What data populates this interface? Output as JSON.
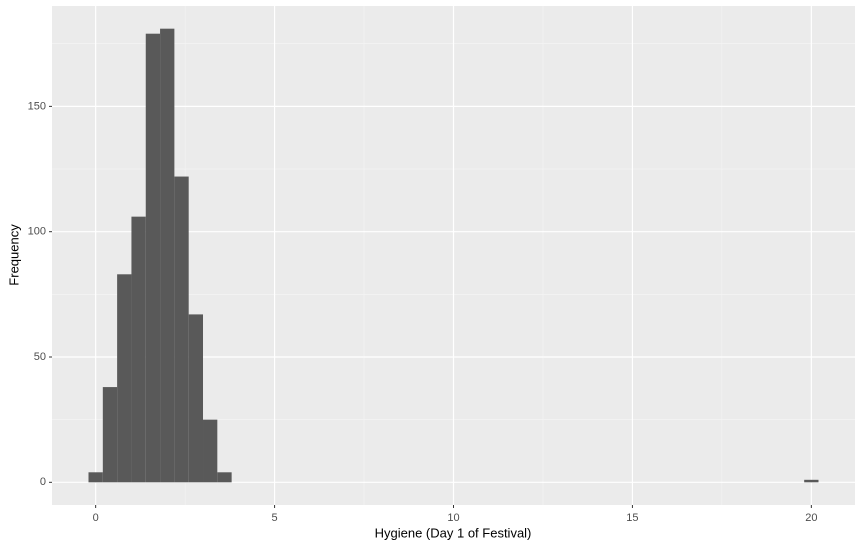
{
  "chart_data": {
    "type": "histogram",
    "x_label": "Hygiene (Day 1 of Festival)",
    "y_label": "Frequency",
    "bins": [
      -0.2,
      0.2,
      0.6,
      1.0,
      1.4,
      1.8,
      2.2,
      2.6,
      3.0,
      3.4,
      3.8,
      4.2,
      4.6,
      5.0,
      5.4,
      5.8,
      6.2,
      6.6,
      7.0,
      7.4,
      7.8,
      8.2,
      8.6,
      9.0,
      9.4,
      9.8,
      10.2,
      10.6,
      11.0,
      11.4,
      11.8,
      12.2,
      12.6,
      13.0,
      13.4,
      13.8,
      14.2,
      14.6,
      15.0,
      15.4,
      15.8,
      16.2,
      16.6,
      17.0,
      17.4,
      17.8,
      18.2,
      18.6,
      19.0,
      19.4,
      19.8,
      20.2
    ],
    "values": [
      4,
      38,
      83,
      106,
      179,
      181,
      122,
      67,
      25,
      4,
      0,
      0,
      0,
      0,
      0,
      0,
      0,
      0,
      0,
      0,
      0,
      0,
      0,
      0,
      0,
      0,
      0,
      0,
      0,
      0,
      0,
      0,
      0,
      0,
      0,
      0,
      0,
      0,
      0,
      0,
      0,
      0,
      0,
      0,
      0,
      0,
      0,
      0,
      0,
      0,
      1
    ],
    "color": "#595959",
    "xlim": [
      -1.22,
      21.22
    ],
    "xticks": [
      0,
      5,
      10,
      15,
      20
    ],
    "x_minor_grid": [
      2.5,
      7.5,
      12.5,
      17.5
    ],
    "ylim": [
      -9.05,
      190.05
    ],
    "yticks": [
      0,
      50,
      100,
      150
    ],
    "y_minor_grid": [
      25,
      75,
      125,
      175
    ],
    "grid": true
  }
}
